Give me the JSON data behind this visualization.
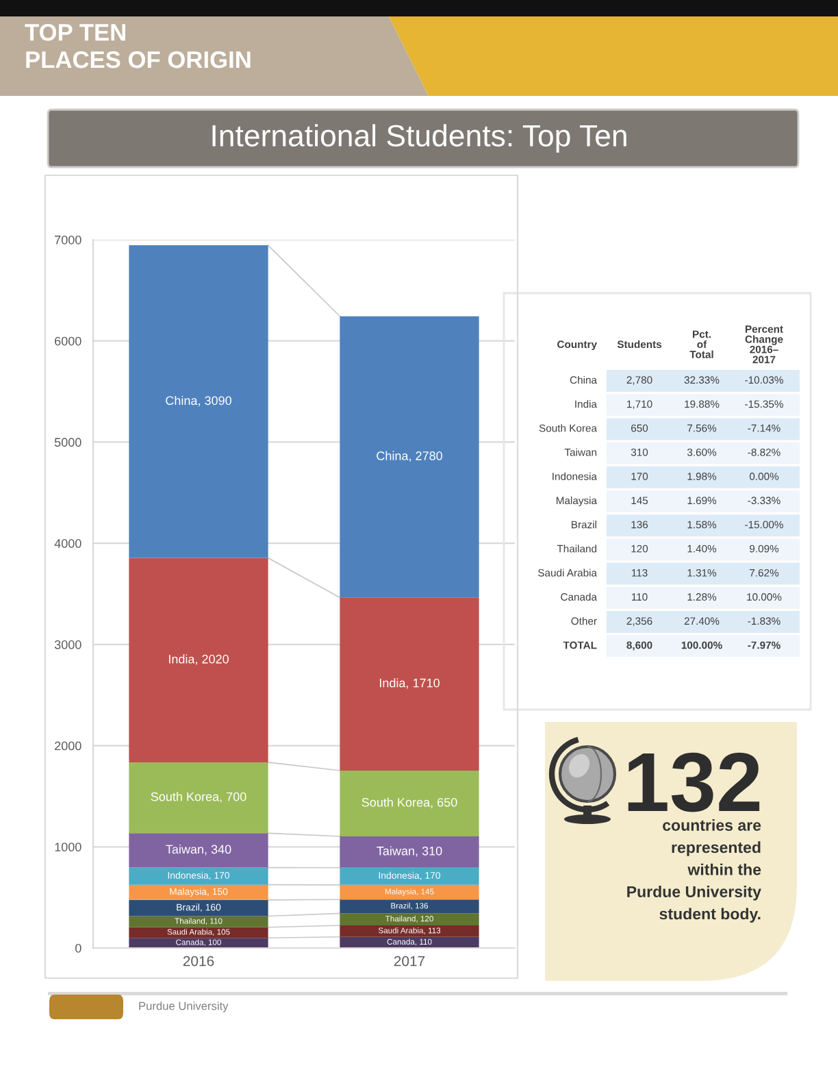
{
  "chart_data": [
    {
      "type": "bar",
      "title": "International Students: Top Ten",
      "annotations": [
        "TOP TEN\nPLACES OF ORIGIN",
        "Purdue University"
      ],
      "categories": [
        "2016",
        "2017"
      ],
      "stacked": true,
      "ylim": [
        0,
        7000
      ],
      "yticks": [
        0,
        1000,
        2000,
        3000,
        4000,
        5000,
        6000,
        7000
      ],
      "grid": "y",
      "series": [
        {
          "color": "#4D3B62",
          "values": [
            100,
            110
          ],
          "value_labels": [
            "Canada, 100",
            "Canada, 110"
          ]
        },
        {
          "color": "#772C2A",
          "values": [
            105,
            113
          ],
          "value_labels": [
            "Saudi Arabia, 105",
            "Saudi Arabia, 113"
          ]
        },
        {
          "color": "#5F7530",
          "values": [
            110,
            120
          ],
          "value_labels": [
            "Thailand, 110",
            "Thailand, 120"
          ]
        },
        {
          "color": "#2C4D75",
          "values": [
            160,
            136
          ],
          "value_labels": [
            "Brazil, 160",
            "Brazil, 136"
          ]
        },
        {
          "color": "#F79646",
          "values": [
            150,
            145
          ],
          "value_labels": [
            "Malaysia, 150",
            "Malaysia, 145"
          ]
        },
        {
          "color": "#4BACC6",
          "values": [
            170,
            170
          ],
          "value_labels": [
            "Indonesia, 170",
            "Indonesia, 170"
          ]
        },
        {
          "color": "#8064A2",
          "values": [
            340,
            310
          ],
          "value_labels": [
            "Taiwan, 340",
            "Taiwan, 310"
          ]
        },
        {
          "color": "#9BBB59",
          "values": [
            700,
            650
          ],
          "value_labels": [
            "South Korea, 700",
            "South Korea, 650"
          ]
        },
        {
          "color": "#C0504D",
          "values": [
            2020,
            1710
          ],
          "value_labels": [
            "India, 2020",
            "India, 1710"
          ]
        },
        {
          "color": "#4F81BD",
          "values": [
            3090,
            2780
          ],
          "value_labels": [
            "China, 3090",
            "China, 2780"
          ]
        }
      ]
    },
    {
      "type": "other",
      "categories": [
        "Country",
        "Students",
        "Pct.\nof\nTotal",
        "Percent\nChange\n2016–\n2017"
      ],
      "y_categories": [
        "China",
        "India",
        "South Korea",
        "Taiwan",
        "Indonesia",
        "Malaysia",
        "Brazil",
        "Thailand",
        "Saudi Arabia",
        "Canada",
        "Other",
        "TOTAL"
      ],
      "cell_labels": [
        [
          "2,780",
          "32.33%",
          "-10.03%"
        ],
        [
          "1,710",
          "19.88%",
          "-15.35%"
        ],
        [
          "650",
          "7.56%",
          "-7.14%"
        ],
        [
          "310",
          "3.60%",
          "-8.82%"
        ],
        [
          "170",
          "1.98%",
          "0.00%"
        ],
        [
          "145",
          "1.69%",
          "-3.33%"
        ],
        [
          "136",
          "1.58%",
          "-15.00%"
        ],
        [
          "120",
          "1.40%",
          "9.09%"
        ],
        [
          "113",
          "1.31%",
          "7.62%"
        ],
        [
          "110",
          "1.28%",
          "10.00%"
        ],
        [
          "2,356",
          "27.40%",
          "-1.83%"
        ],
        [
          "8,600",
          "100.00%",
          "-7.97%"
        ]
      ]
    },
    {
      "type": "other",
      "title": "132",
      "subtitle": "countries are\nrepresented\nwithin the\nPurdue University\nstudent body."
    }
  ]
}
